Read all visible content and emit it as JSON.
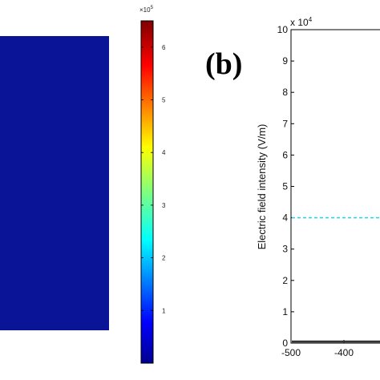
{
  "chart_data": [
    {
      "type": "heatmap",
      "panel_label": "",
      "field_color": "#0a1496",
      "colorbar": {
        "exponent_label": "×10",
        "exponent_power": "5",
        "ticks": [
          "1",
          "2",
          "3",
          "4",
          "5",
          "6"
        ],
        "tick_values": [
          1,
          2,
          3,
          4,
          5,
          6
        ],
        "range": [
          0,
          6.5
        ],
        "colormap": "jet"
      }
    },
    {
      "type": "line",
      "panel_label": "(b)",
      "ylabel": "Electric field intensity (V/m)",
      "exponent_label": "x 10",
      "exponent_power": "4",
      "x_ticks": [
        "-500",
        "-400"
      ],
      "x_tick_values": [
        -500,
        -400
      ],
      "y_ticks": [
        "0",
        "1",
        "2",
        "3",
        "4",
        "5",
        "6",
        "7",
        "8",
        "9",
        "10"
      ],
      "y_tick_values": [
        0,
        1,
        2,
        3,
        4,
        5,
        6,
        7,
        8,
        9,
        10
      ],
      "ylim": [
        0,
        10
      ],
      "series": [
        {
          "style": "dashed",
          "color": "#22d3f0",
          "y": 4
        },
        {
          "style": "solid",
          "color": "#333333",
          "y": 0.05
        }
      ]
    }
  ]
}
